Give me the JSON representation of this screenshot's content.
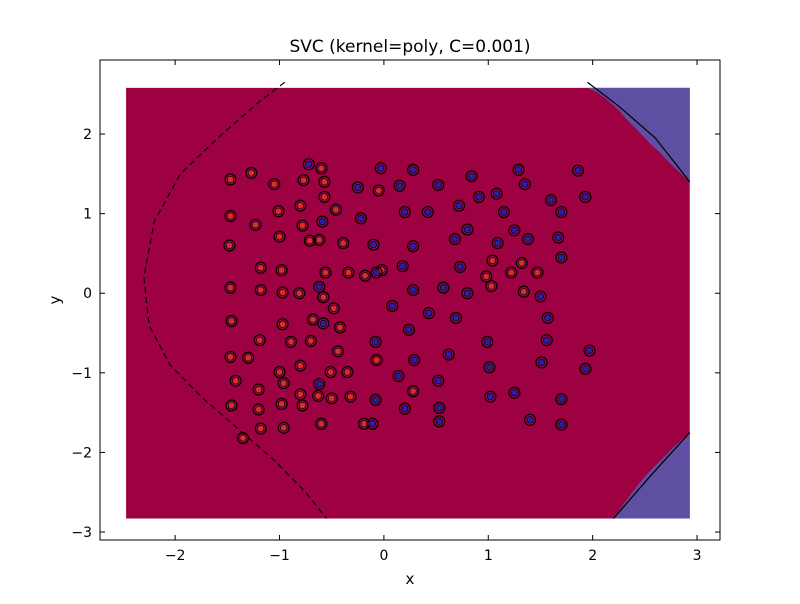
{
  "chart_data": {
    "type": "scatter",
    "title": "SVC (kernel=poly, C=0.001)",
    "xlabel": "x",
    "ylabel": "y",
    "xlim": [
      -2.72,
      3.22
    ],
    "ylim": [
      -3.1,
      2.93
    ],
    "x_ticks": [
      -2,
      -1,
      0,
      1,
      2,
      3
    ],
    "y_ticks": [
      -3,
      -2,
      -1,
      0,
      1,
      2
    ],
    "x_tick_labels": [
      "−2",
      "−1",
      "0",
      "1",
      "2",
      "3"
    ],
    "y_tick_labels": [
      "−3",
      "−2",
      "−1",
      "0",
      "1",
      "2"
    ],
    "grid": false,
    "decision_region": {
      "x_range": [
        -2.47,
        2.93
      ],
      "y_range": [
        -2.83,
        2.58
      ],
      "region_colors": {
        "class_0": "#9e0142",
        "class_1": "#5e4fa2"
      }
    },
    "boundary_lines": [
      {
        "style": "dashed",
        "points": [
          [
            -0.95,
            2.65
          ],
          [
            -1.2,
            2.4
          ],
          [
            -1.55,
            2.0
          ],
          [
            -1.95,
            1.5
          ],
          [
            -2.2,
            0.9
          ],
          [
            -2.3,
            0.2
          ],
          [
            -2.25,
            -0.4
          ],
          [
            -2.05,
            -0.9
          ],
          [
            -1.75,
            -1.3
          ],
          [
            -1.4,
            -1.7
          ],
          [
            -1.05,
            -2.1
          ],
          [
            -0.75,
            -2.5
          ],
          [
            -0.55,
            -2.83
          ]
        ]
      },
      {
        "style": "solid",
        "points": [
          [
            1.95,
            2.65
          ],
          [
            2.25,
            2.35
          ],
          [
            2.6,
            1.95
          ],
          [
            2.93,
            1.4
          ]
        ]
      },
      {
        "style": "solid",
        "points": [
          [
            2.2,
            -2.83
          ],
          [
            2.55,
            -2.3
          ],
          [
            2.93,
            -1.75
          ]
        ]
      }
    ],
    "point_colors": {
      "class_0": "#d73027",
      "class_1": "#2121b0"
    },
    "series": [
      {
        "class": "class_0",
        "points": [
          [
            -1.47,
            1.43
          ],
          [
            -1.27,
            1.51
          ],
          [
            -1.47,
            0.97
          ],
          [
            -1.23,
            0.86
          ],
          [
            -1.48,
            0.6
          ],
          [
            -1.18,
            0.32
          ],
          [
            -1.47,
            0.07
          ],
          [
            -1.18,
            0.04
          ],
          [
            -1.46,
            -0.35
          ],
          [
            -1.19,
            -0.59
          ],
          [
            -1.47,
            -0.8
          ],
          [
            -1.3,
            -0.81
          ],
          [
            -1.42,
            -1.1
          ],
          [
            -1.2,
            -1.21
          ],
          [
            -1.46,
            -1.41
          ],
          [
            -1.2,
            -1.46
          ],
          [
            -1.18,
            -1.7
          ],
          [
            -1.05,
            1.37
          ],
          [
            -1.01,
            1.03
          ],
          [
            -1.0,
            0.71
          ],
          [
            -0.98,
            0.29
          ],
          [
            -0.97,
            0.01
          ],
          [
            -0.81,
            0.0
          ],
          [
            -0.97,
            -0.39
          ],
          [
            -0.89,
            -0.61
          ],
          [
            -1.0,
            -0.99
          ],
          [
            -0.96,
            -1.13
          ],
          [
            -0.98,
            -1.39
          ],
          [
            -0.8,
            -1.27
          ],
          [
            -0.96,
            -1.69
          ],
          [
            -0.6,
            1.57
          ],
          [
            -0.77,
            1.42
          ],
          [
            -0.57,
            1.4
          ],
          [
            -0.8,
            1.1
          ],
          [
            -0.57,
            1.21
          ],
          [
            -0.78,
            0.85
          ],
          [
            -0.62,
            0.67
          ],
          [
            -0.71,
            0.66
          ],
          [
            -0.56,
            0.26
          ],
          [
            -0.58,
            -0.05
          ],
          [
            -0.48,
            -0.19
          ],
          [
            -0.68,
            -0.33
          ],
          [
            -0.42,
            -0.43
          ],
          [
            -0.7,
            -0.6
          ],
          [
            -0.44,
            -0.73
          ],
          [
            -0.8,
            -0.91
          ],
          [
            -0.51,
            -0.99
          ],
          [
            -0.63,
            -1.29
          ],
          [
            -0.5,
            -1.32
          ],
          [
            -0.78,
            -1.41
          ],
          [
            -0.6,
            -1.64
          ],
          [
            -0.46,
            1.05
          ],
          [
            -0.39,
            0.63
          ],
          [
            -0.34,
            0.26
          ],
          [
            -0.35,
            -0.99
          ],
          [
            -0.32,
            -1.3
          ],
          [
            -0.18,
            0.22
          ],
          [
            -0.02,
            0.29
          ],
          [
            -0.05,
            1.29
          ],
          [
            -0.07,
            -0.84
          ],
          [
            -0.19,
            -1.64
          ],
          [
            0.28,
            -1.23
          ],
          [
            0.98,
            0.21
          ],
          [
            1.03,
            0.09
          ],
          [
            1.04,
            0.41
          ],
          [
            1.32,
            0.38
          ],
          [
            1.22,
            0.26
          ],
          [
            1.47,
            0.26
          ],
          [
            1.34,
            0.02
          ],
          [
            -1.35,
            -1.82
          ]
        ]
      },
      {
        "class": "class_1",
        "points": [
          [
            -0.72,
            1.62
          ],
          [
            -0.59,
            0.9
          ],
          [
            -0.62,
            0.08
          ],
          [
            -0.58,
            -0.38
          ],
          [
            -0.62,
            -1.14
          ],
          [
            -0.25,
            1.33
          ],
          [
            -0.22,
            0.94
          ],
          [
            -0.1,
            0.61
          ],
          [
            -0.07,
            0.26
          ],
          [
            -0.08,
            -0.61
          ],
          [
            -0.08,
            -1.34
          ],
          [
            -0.11,
            -1.64
          ],
          [
            -0.03,
            1.57
          ],
          [
            0.08,
            -0.16
          ],
          [
            0.14,
            -1.04
          ],
          [
            0.15,
            1.35
          ],
          [
            0.18,
            0.34
          ],
          [
            0.2,
            1.02
          ],
          [
            0.2,
            -1.45
          ],
          [
            0.24,
            -0.46
          ],
          [
            0.28,
            0.59
          ],
          [
            0.28,
            1.55
          ],
          [
            0.29,
            -0.84
          ],
          [
            0.28,
            0.04
          ],
          [
            0.42,
            1.02
          ],
          [
            0.43,
            -0.25
          ],
          [
            0.52,
            1.36
          ],
          [
            0.52,
            -1.1
          ],
          [
            0.53,
            -1.44
          ],
          [
            0.53,
            -1.61
          ],
          [
            0.57,
            0.07
          ],
          [
            0.62,
            -0.77
          ],
          [
            0.68,
            0.68
          ],
          [
            0.69,
            -0.31
          ],
          [
            0.72,
            1.1
          ],
          [
            0.73,
            0.33
          ],
          [
            0.8,
            0.8
          ],
          [
            0.8,
            0.0
          ],
          [
            0.84,
            1.47
          ],
          [
            0.91,
            1.21
          ],
          [
            0.99,
            -0.61
          ],
          [
            1.01,
            -0.93
          ],
          [
            1.02,
            -1.3
          ],
          [
            1.08,
            1.25
          ],
          [
            1.09,
            0.63
          ],
          [
            1.15,
            1.02
          ],
          [
            1.25,
            -1.25
          ],
          [
            1.25,
            0.79
          ],
          [
            1.29,
            1.55
          ],
          [
            1.35,
            1.37
          ],
          [
            1.38,
            0.68
          ],
          [
            1.4,
            -1.59
          ],
          [
            1.5,
            -0.04
          ],
          [
            1.51,
            -0.87
          ],
          [
            1.56,
            -0.59
          ],
          [
            1.57,
            -0.31
          ],
          [
            1.6,
            1.17
          ],
          [
            1.67,
            0.7
          ],
          [
            1.7,
            1.02
          ],
          [
            1.7,
            0.45
          ],
          [
            1.7,
            -1.33
          ],
          [
            1.7,
            -1.65
          ],
          [
            1.86,
            1.54
          ],
          [
            1.93,
            1.21
          ],
          [
            1.93,
            -0.95
          ],
          [
            1.97,
            -0.72
          ]
        ]
      }
    ]
  }
}
